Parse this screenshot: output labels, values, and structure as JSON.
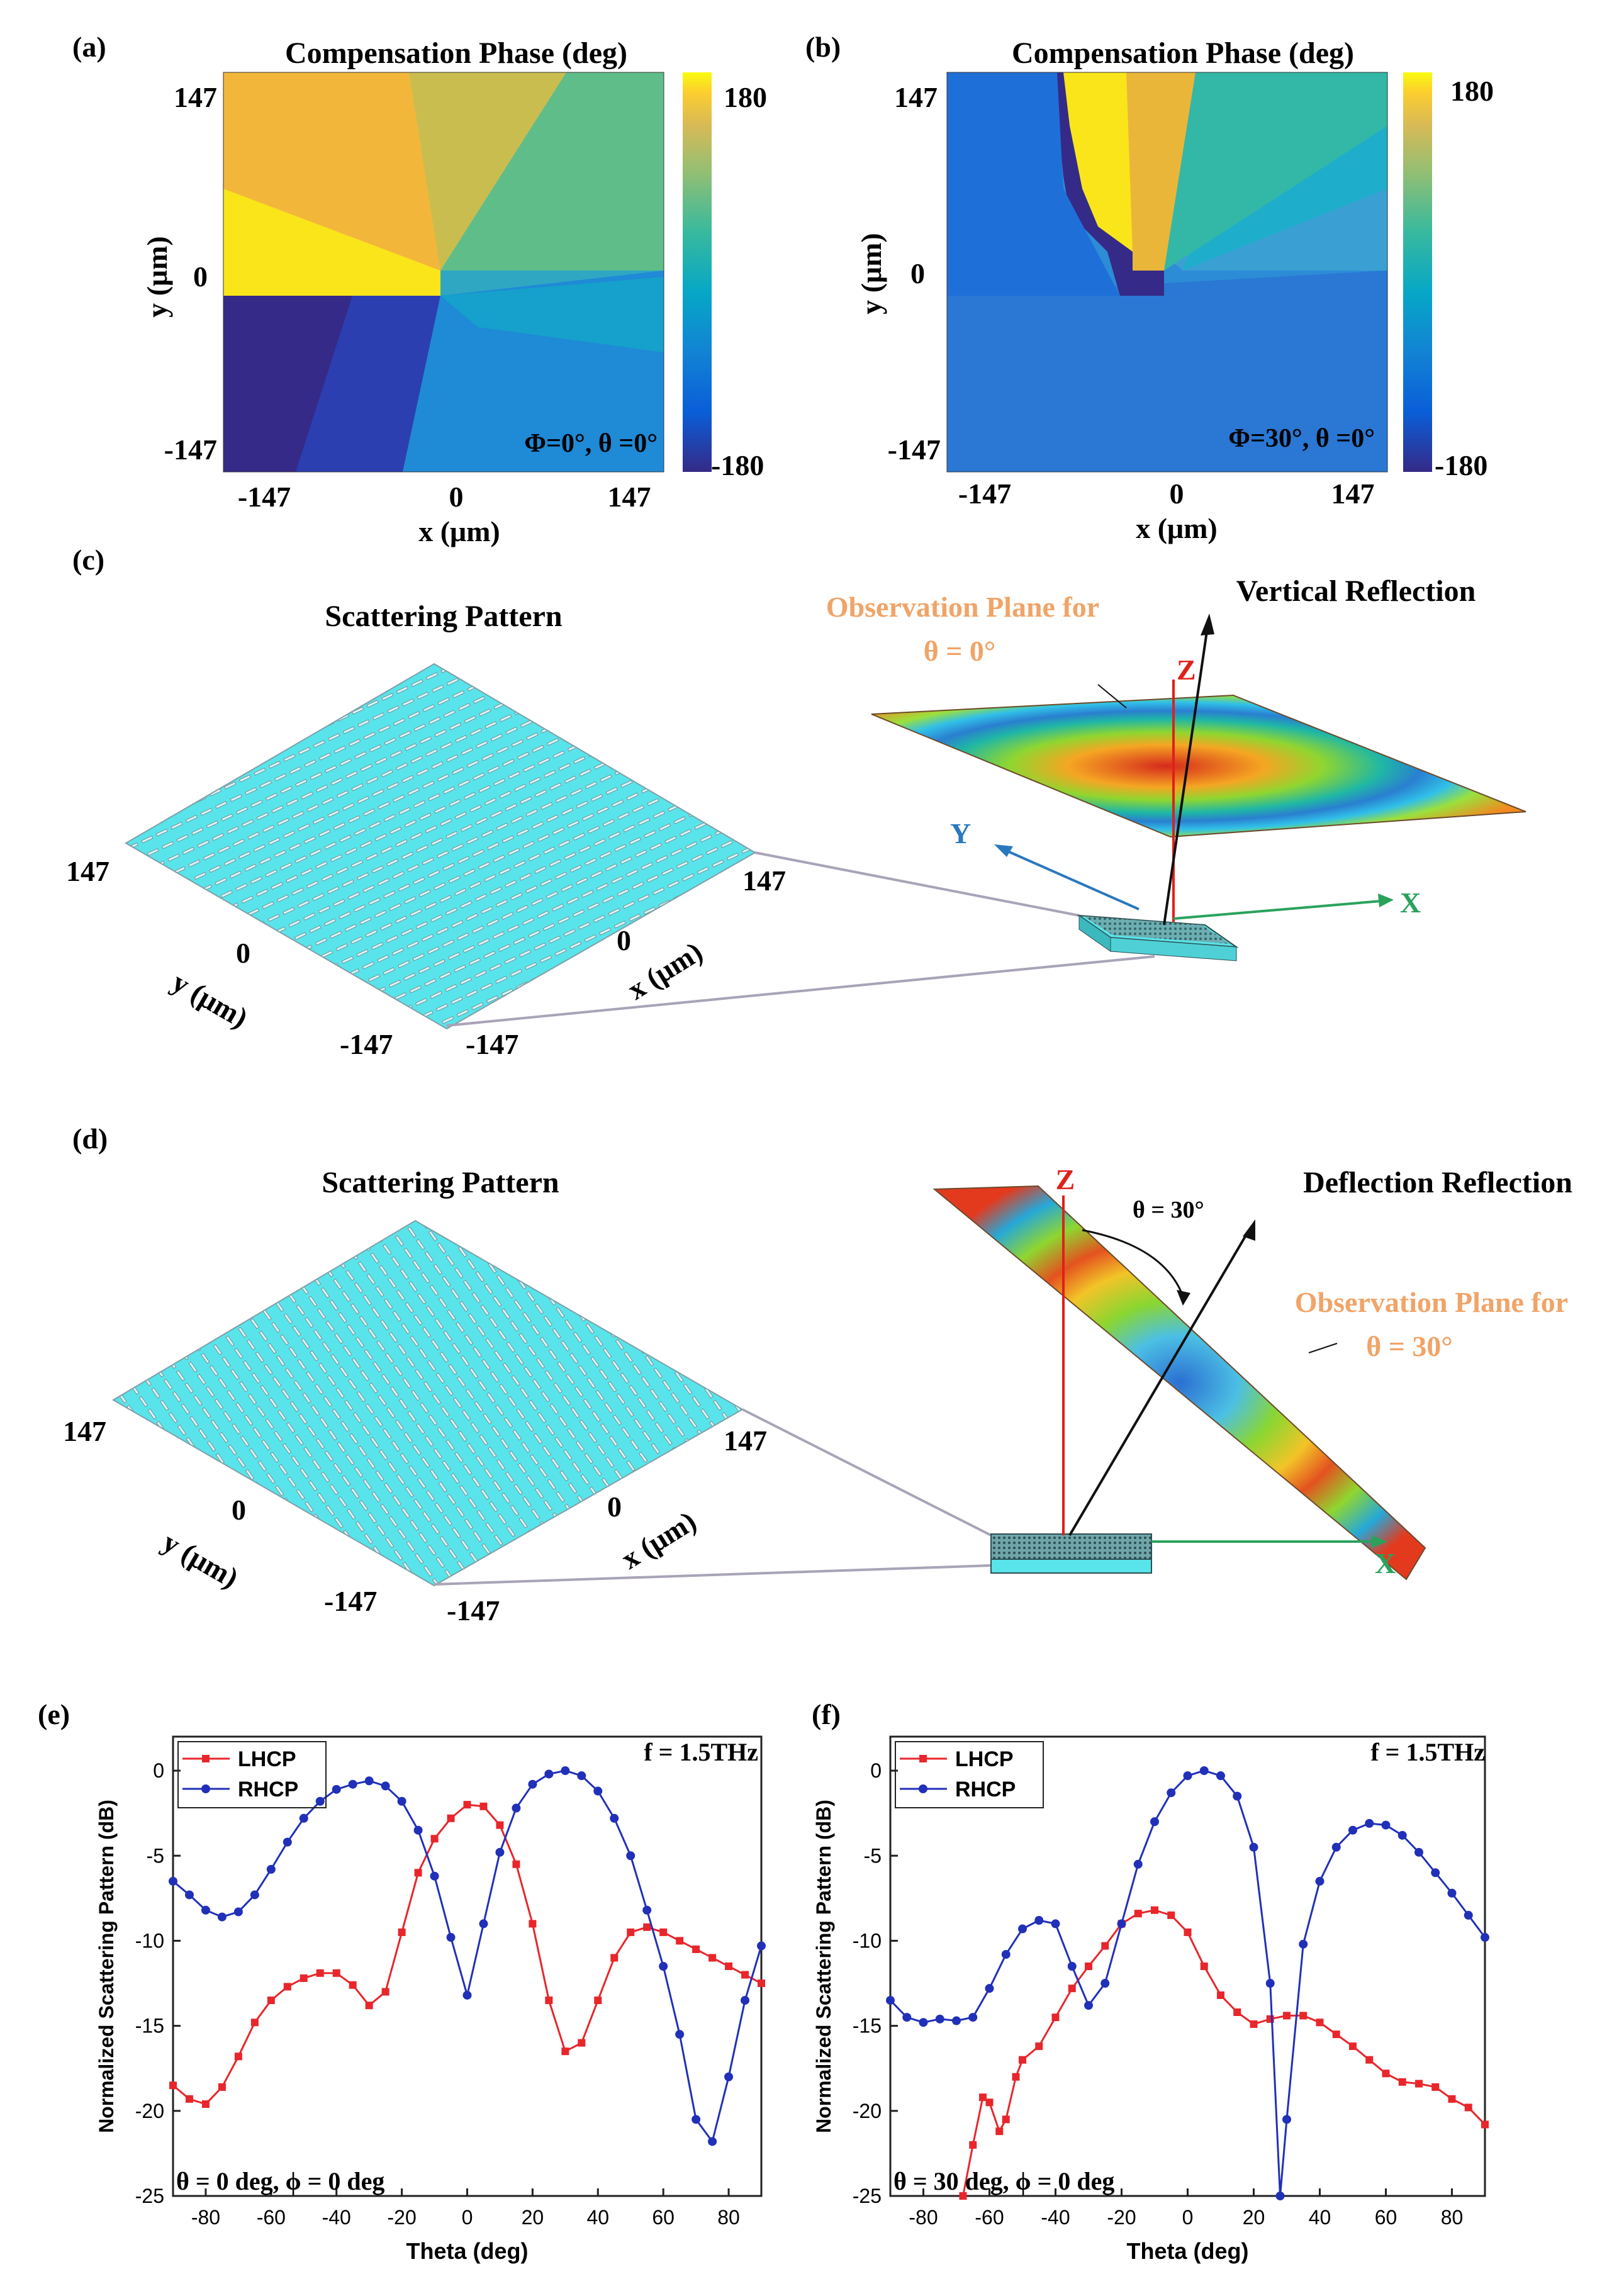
{
  "panels": {
    "a": {
      "label": "(a)",
      "title": "Compensation Phase (deg)",
      "xlabel": "x (μm)",
      "ylabel": "y (μm)",
      "xticks": [
        "-147",
        "0",
        "147"
      ],
      "yticks": [
        "147",
        "0",
        "-147"
      ],
      "colorbar": {
        "max": "180",
        "min": "-180"
      },
      "annotation": "Φ=0°, θ =0°"
    },
    "b": {
      "label": "(b)",
      "title": "Compensation Phase (deg)",
      "xlabel": "x (μm)",
      "ylabel": "y (μm)",
      "xticks": [
        "-147",
        "0",
        "147"
      ],
      "yticks": [
        "147",
        "0",
        "-147"
      ],
      "colorbar": {
        "max": "180",
        "min": "-180"
      },
      "annotation": "Φ=30°, θ =0°"
    },
    "c": {
      "label": "(c)",
      "title": "Scattering Pattern",
      "obs_line1": "Observation Plane for",
      "obs_line2": "θ  = 0°",
      "reflection": "Vertical Reflection",
      "axis_z": "Z",
      "axis_y": "Y",
      "axis_x": "X",
      "tick_left_top": "147",
      "tick_right_top": "147",
      "tick_y0": "0",
      "tick_x0": "0",
      "tick_bl": "-147",
      "tick_br": "-147",
      "ylab": "y (μm)",
      "xlab": "x (μm)"
    },
    "d": {
      "label": "(d)",
      "title": "Scattering Pattern",
      "reflection": "Deflection Reflection",
      "theta_label": "θ  = 30°",
      "obs_line1": "Observation Plane for",
      "obs_line2": "θ  = 30°",
      "axis_z": "Z",
      "axis_x": "X",
      "tick_left_top": "147",
      "tick_right_top": "147",
      "tick_y0": "0",
      "tick_x0": "0",
      "tick_bl": "-147",
      "tick_br": "-147",
      "ylab": "y (μm)",
      "xlab": "x (μm)"
    },
    "e": {
      "label": "(e)",
      "freq": "f = 1.5THz",
      "cond": "θ = 0 deg, ϕ = 0 deg"
    },
    "f": {
      "label": "(f)",
      "freq": "f = 1.5THz",
      "cond": "θ = 30 deg, ϕ = 0 deg"
    }
  },
  "colors": {
    "lhcp": "#e8262b",
    "rhcp": "#2130b8",
    "pattern": "#58e4ea"
  },
  "chart_data": [
    {
      "id": "e",
      "type": "line",
      "xlabel": "Theta (deg)",
      "ylabel": "Normalized Scattering Pattern (dB)",
      "xlim": [
        -90,
        90
      ],
      "ylim": [
        -25,
        2
      ],
      "xticks": [
        -80,
        -60,
        -40,
        -20,
        0,
        20,
        40,
        60,
        80
      ],
      "yticks": [
        0,
        -5,
        -10,
        -15,
        -20,
        -25
      ],
      "legend": "top-left",
      "series": [
        {
          "name": "LHCP",
          "marker": "square",
          "points": [
            [
              -90,
              -18.5
            ],
            [
              -85,
              -19.3
            ],
            [
              -80,
              -19.6
            ],
            [
              -75,
              -18.6
            ],
            [
              -70,
              -16.8
            ],
            [
              -65,
              -14.8
            ],
            [
              -60,
              -13.5
            ],
            [
              -55,
              -12.7
            ],
            [
              -50,
              -12.2
            ],
            [
              -45,
              -11.9
            ],
            [
              -40,
              -11.9
            ],
            [
              -35,
              -12.6
            ],
            [
              -30,
              -13.8
            ],
            [
              -25,
              -13.0
            ],
            [
              -20,
              -9.5
            ],
            [
              -15,
              -6.0
            ],
            [
              -10,
              -4.0
            ],
            [
              -5,
              -2.8
            ],
            [
              0,
              -2.0
            ],
            [
              5,
              -2.1
            ],
            [
              10,
              -3.2
            ],
            [
              15,
              -5.5
            ],
            [
              20,
              -9.0
            ],
            [
              25,
              -13.5
            ],
            [
              30,
              -16.5
            ],
            [
              35,
              -16.0
            ],
            [
              40,
              -13.5
            ],
            [
              45,
              -11.0
            ],
            [
              50,
              -9.5
            ],
            [
              55,
              -9.2
            ],
            [
              60,
              -9.5
            ],
            [
              65,
              -10.0
            ],
            [
              70,
              -10.5
            ],
            [
              75,
              -11.0
            ],
            [
              80,
              -11.5
            ],
            [
              85,
              -12.0
            ],
            [
              90,
              -12.5
            ]
          ]
        },
        {
          "name": "RHCP",
          "marker": "circle",
          "points": [
            [
              -90,
              -6.5
            ],
            [
              -85,
              -7.3
            ],
            [
              -80,
              -8.2
            ],
            [
              -75,
              -8.6
            ],
            [
              -70,
              -8.3
            ],
            [
              -65,
              -7.3
            ],
            [
              -60,
              -5.8
            ],
            [
              -55,
              -4.2
            ],
            [
              -50,
              -2.8
            ],
            [
              -45,
              -1.8
            ],
            [
              -40,
              -1.1
            ],
            [
              -35,
              -0.8
            ],
            [
              -30,
              -0.6
            ],
            [
              -25,
              -0.9
            ],
            [
              -20,
              -1.8
            ],
            [
              -15,
              -3.5
            ],
            [
              -10,
              -6.2
            ],
            [
              -5,
              -9.8
            ],
            [
              0,
              -13.2
            ],
            [
              5,
              -9.0
            ],
            [
              10,
              -4.8
            ],
            [
              15,
              -2.2
            ],
            [
              20,
              -0.8
            ],
            [
              25,
              -0.2
            ],
            [
              30,
              0.0
            ],
            [
              35,
              -0.3
            ],
            [
              40,
              -1.2
            ],
            [
              45,
              -2.8
            ],
            [
              50,
              -5.0
            ],
            [
              55,
              -8.2
            ],
            [
              60,
              -11.5
            ],
            [
              65,
              -15.5
            ],
            [
              70,
              -20.5
            ],
            [
              75,
              -21.8
            ],
            [
              80,
              -18.0
            ],
            [
              85,
              -13.5
            ],
            [
              90,
              -10.3
            ]
          ]
        }
      ]
    },
    {
      "id": "f",
      "type": "line",
      "xlabel": "Theta (deg)",
      "ylabel": "Normalized Scattering Pattern (dB)",
      "xlim": [
        -90,
        90
      ],
      "ylim": [
        -25,
        2
      ],
      "xticks": [
        -80,
        -60,
        -40,
        -20,
        0,
        20,
        40,
        60,
        80
      ],
      "yticks": [
        0,
        -5,
        -10,
        -15,
        -20,
        -25
      ],
      "legend": "top-left",
      "series": [
        {
          "name": "LHCP",
          "marker": "square",
          "points": [
            [
              -68,
              -25.0
            ],
            [
              -65,
              -22.0
            ],
            [
              -62,
              -19.2
            ],
            [
              -60,
              -19.5
            ],
            [
              -57,
              -21.2
            ],
            [
              -55,
              -20.5
            ],
            [
              -52,
              -18.0
            ],
            [
              -50,
              -17.0
            ],
            [
              -45,
              -16.2
            ],
            [
              -40,
              -14.5
            ],
            [
              -35,
              -12.8
            ],
            [
              -30,
              -11.5
            ],
            [
              -25,
              -10.3
            ],
            [
              -20,
              -9.0
            ],
            [
              -15,
              -8.4
            ],
            [
              -10,
              -8.2
            ],
            [
              -5,
              -8.5
            ],
            [
              0,
              -9.5
            ],
            [
              5,
              -11.5
            ],
            [
              10,
              -13.2
            ],
            [
              15,
              -14.2
            ],
            [
              20,
              -14.9
            ],
            [
              25,
              -14.6
            ],
            [
              30,
              -14.4
            ],
            [
              35,
              -14.4
            ],
            [
              40,
              -14.8
            ],
            [
              45,
              -15.5
            ],
            [
              50,
              -16.2
            ],
            [
              55,
              -17.0
            ],
            [
              60,
              -17.8
            ],
            [
              65,
              -18.3
            ],
            [
              70,
              -18.4
            ],
            [
              75,
              -18.6
            ],
            [
              80,
              -19.3
            ],
            [
              85,
              -19.8
            ],
            [
              90,
              -20.8
            ]
          ]
        },
        {
          "name": "RHCP",
          "marker": "circle",
          "points": [
            [
              -90,
              -13.5
            ],
            [
              -85,
              -14.5
            ],
            [
              -80,
              -14.8
            ],
            [
              -75,
              -14.6
            ],
            [
              -70,
              -14.7
            ],
            [
              -65,
              -14.5
            ],
            [
              -60,
              -12.8
            ],
            [
              -55,
              -10.8
            ],
            [
              -50,
              -9.3
            ],
            [
              -45,
              -8.8
            ],
            [
              -40,
              -9.0
            ],
            [
              -35,
              -11.5
            ],
            [
              -30,
              -13.8
            ],
            [
              -25,
              -12.5
            ],
            [
              -20,
              -9.0
            ],
            [
              -15,
              -5.5
            ],
            [
              -10,
              -3.0
            ],
            [
              -5,
              -1.3
            ],
            [
              0,
              -0.3
            ],
            [
              5,
              0.0
            ],
            [
              10,
              -0.3
            ],
            [
              15,
              -1.5
            ],
            [
              20,
              -4.5
            ],
            [
              25,
              -12.5
            ],
            [
              28,
              -25.0
            ],
            [
              30,
              -20.5
            ],
            [
              35,
              -10.2
            ],
            [
              40,
              -6.5
            ],
            [
              45,
              -4.5
            ],
            [
              50,
              -3.5
            ],
            [
              55,
              -3.1
            ],
            [
              60,
              -3.2
            ],
            [
              65,
              -3.8
            ],
            [
              70,
              -4.8
            ],
            [
              75,
              -6.0
            ],
            [
              80,
              -7.2
            ],
            [
              85,
              -8.5
            ],
            [
              90,
              -9.8
            ]
          ]
        }
      ]
    }
  ]
}
